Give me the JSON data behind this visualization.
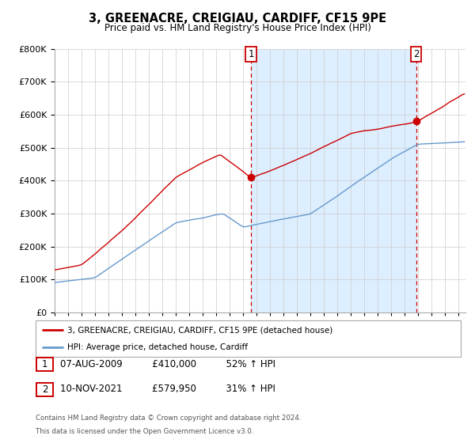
{
  "title": "3, GREENACRE, CREIGIAU, CARDIFF, CF15 9PE",
  "subtitle": "Price paid vs. HM Land Registry's House Price Index (HPI)",
  "sale1_date": "07-AUG-2009",
  "sale1_price": 410000,
  "sale1_label": "£410,000",
  "sale1_pct": "52% ↑ HPI",
  "sale2_date": "10-NOV-2021",
  "sale2_price": 579950,
  "sale2_label": "£579,950",
  "sale2_pct": "31% ↑ HPI",
  "sale1_year": 2009.58,
  "sale2_year": 2021.84,
  "legend_line1": "3, GREENACRE, CREIGIAU, CARDIFF, CF15 9PE (detached house)",
  "legend_line2": "HPI: Average price, detached house, Cardiff",
  "footer1": "Contains HM Land Registry data © Crown copyright and database right 2024.",
  "footer2": "This data is licensed under the Open Government Licence v3.0.",
  "red_color": "#cc0000",
  "blue_color": "#6699cc",
  "fill_color": "#ddeeff",
  "background_color": "#ffffff",
  "grid_color": "#cccccc",
  "ylim_min": 0,
  "ylim_max": 800000,
  "xlim_start": 1995.0,
  "xlim_end": 2025.5
}
